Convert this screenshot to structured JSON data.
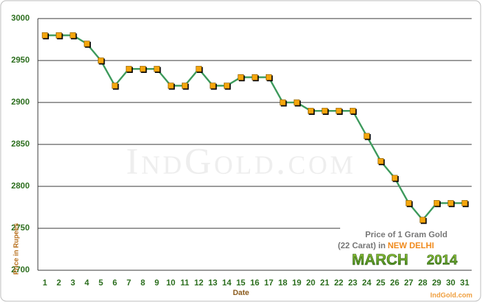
{
  "chart_data": {
    "type": "line",
    "categories": [
      "1",
      "2",
      "3",
      "4",
      "5",
      "6",
      "7",
      "8",
      "9",
      "10",
      "11",
      "12",
      "13",
      "14",
      "15",
      "16",
      "17",
      "18",
      "19",
      "20",
      "21",
      "22",
      "23",
      "24",
      "25",
      "26",
      "27",
      "28",
      "29",
      "30",
      "31"
    ],
    "values": [
      2980,
      2980,
      2980,
      2970,
      2950,
      2920,
      2940,
      2940,
      2940,
      2920,
      2920,
      2940,
      2920,
      2920,
      2930,
      2930,
      2930,
      2900,
      2900,
      2890,
      2890,
      2890,
      2890,
      2860,
      2830,
      2810,
      2780,
      2760,
      2780,
      2780,
      2780
    ],
    "color": "#3d9a5c",
    "marker_color": "#f5a60a",
    "ylim": [
      2700,
      3000
    ],
    "yticks": [
      2700,
      2750,
      2800,
      2850,
      2900,
      2950,
      3000
    ],
    "grid": true,
    "x_label": "Date",
    "y_label": "Price in Rupees",
    "watermark": "IndGold.com",
    "info_box": {
      "line1": "Price of 1 Gram Gold",
      "line2": "(22 Carat) in",
      "location": "NEW DELHI",
      "month": "MARCH",
      "year": "2014"
    },
    "credit": "IndGold.com"
  }
}
